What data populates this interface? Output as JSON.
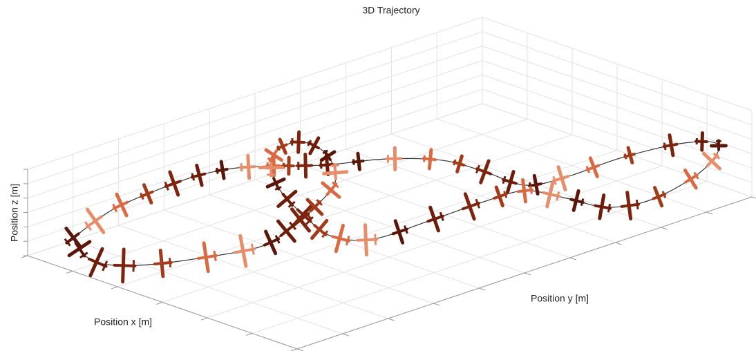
{
  "chart_data": {
    "type": "trajectory3d",
    "title": "3D Trajectory",
    "xlabel": "Position x [m]",
    "ylabel": "Position y [m]",
    "zlabel": "Position z [m]",
    "grid": true
  }
}
